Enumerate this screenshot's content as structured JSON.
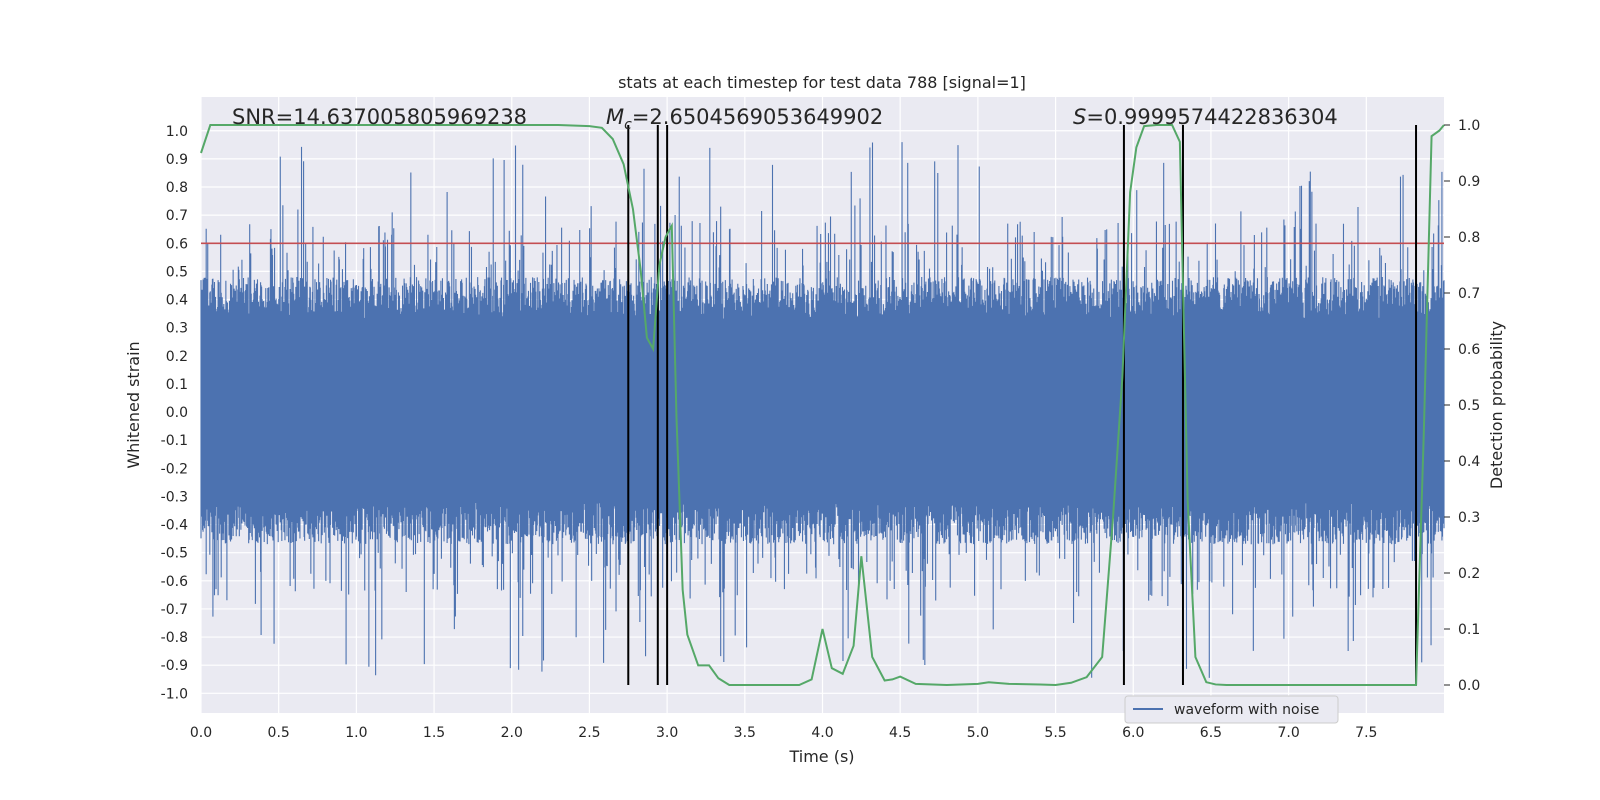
{
  "chart_data": {
    "type": "line",
    "title": "stats at each timestep for test data 788 [signal=1]",
    "xlabel": "Time (s)",
    "ylabel": "Whitened strain",
    "ylabel_right": "Detection probability",
    "xlim": [
      0,
      8
    ],
    "ylim": [
      -1.07,
      1.12
    ],
    "ylim_right": [
      -0.05,
      1.05
    ],
    "xticks": [
      "0.0",
      "0.5",
      "1.0",
      "1.5",
      "2.0",
      "2.5",
      "3.0",
      "3.5",
      "4.0",
      "4.5",
      "5.0",
      "5.5",
      "6.0",
      "6.5",
      "7.0",
      "7.5"
    ],
    "yticks": [
      "1.0",
      "0.9",
      "0.8",
      "0.7",
      "0.6",
      "0.5",
      "0.4",
      "0.3",
      "0.2",
      "0.1",
      "0.0",
      "-0.1",
      "-0.2",
      "-0.3",
      "-0.4",
      "-0.5",
      "-0.6",
      "-0.7",
      "-0.8",
      "-0.9",
      "-1.0"
    ],
    "yticks_right": [
      "1.0",
      "0.9",
      "0.8",
      "0.7",
      "0.6",
      "0.5",
      "0.4",
      "0.3",
      "0.2",
      "0.1",
      "0.0"
    ],
    "annotations": {
      "snr": "SNR=14.637005805969238",
      "mc_symbol": "M",
      "mc_sub": "c",
      "mc_value": "=2.6504569053649902",
      "s_symbol": "S",
      "s_value": "=0.9999574422836304"
    },
    "threshold": 0.6,
    "vlines": [
      2.75,
      2.94,
      3.0,
      5.94,
      6.32,
      7.82
    ],
    "legend": [
      {
        "name": "waveform with noise",
        "color": "#4c72b0"
      }
    ],
    "waveform": {
      "name": "waveform with noise",
      "color": "#4c72b0",
      "description": "whitened strain noise, dense envelope approx +/-0.4 with peaks to +/-1.0"
    },
    "probability": {
      "name": "detection probability",
      "color": "#55a868",
      "x": [
        0.0,
        0.06,
        0.3,
        0.6,
        1.0,
        1.5,
        2.0,
        2.3,
        2.5,
        2.58,
        2.65,
        2.72,
        2.78,
        2.83,
        2.87,
        2.91,
        2.95,
        2.99,
        3.03,
        3.06,
        3.1,
        3.13,
        3.2,
        3.27,
        3.33,
        3.4,
        3.5,
        3.7,
        3.85,
        3.93,
        4.0,
        4.06,
        4.13,
        4.2,
        4.25,
        4.32,
        4.4,
        4.45,
        4.5,
        4.6,
        4.8,
        5.0,
        5.07,
        5.2,
        5.4,
        5.5,
        5.6,
        5.7,
        5.8,
        5.87,
        5.93,
        5.98,
        6.02,
        6.07,
        6.15,
        6.25,
        6.3,
        6.35,
        6.4,
        6.47,
        6.53,
        6.6,
        6.8,
        7.0,
        7.3,
        7.6,
        7.82,
        7.87,
        7.92,
        7.97,
        8.0
      ],
      "y": [
        0.95,
        1.0,
        1.0,
        1.0,
        1.0,
        1.0,
        1.0,
        1.0,
        0.998,
        0.995,
        0.975,
        0.93,
        0.85,
        0.74,
        0.62,
        0.6,
        0.75,
        0.8,
        0.82,
        0.48,
        0.17,
        0.09,
        0.035,
        0.035,
        0.012,
        0.0,
        0.0,
        0.0,
        0.0,
        0.01,
        0.1,
        0.03,
        0.02,
        0.07,
        0.23,
        0.05,
        0.008,
        0.01,
        0.015,
        0.002,
        0.0,
        0.002,
        0.005,
        0.002,
        0.001,
        0.0,
        0.004,
        0.014,
        0.05,
        0.3,
        0.55,
        0.88,
        0.96,
        0.998,
        1.0,
        1.0,
        0.97,
        0.33,
        0.05,
        0.005,
        0.001,
        0.0,
        0.0,
        0.0,
        0.0,
        0.0,
        0.0,
        0.45,
        0.98,
        0.99,
        1.0
      ]
    },
    "threshold_color": "#c44e52"
  }
}
